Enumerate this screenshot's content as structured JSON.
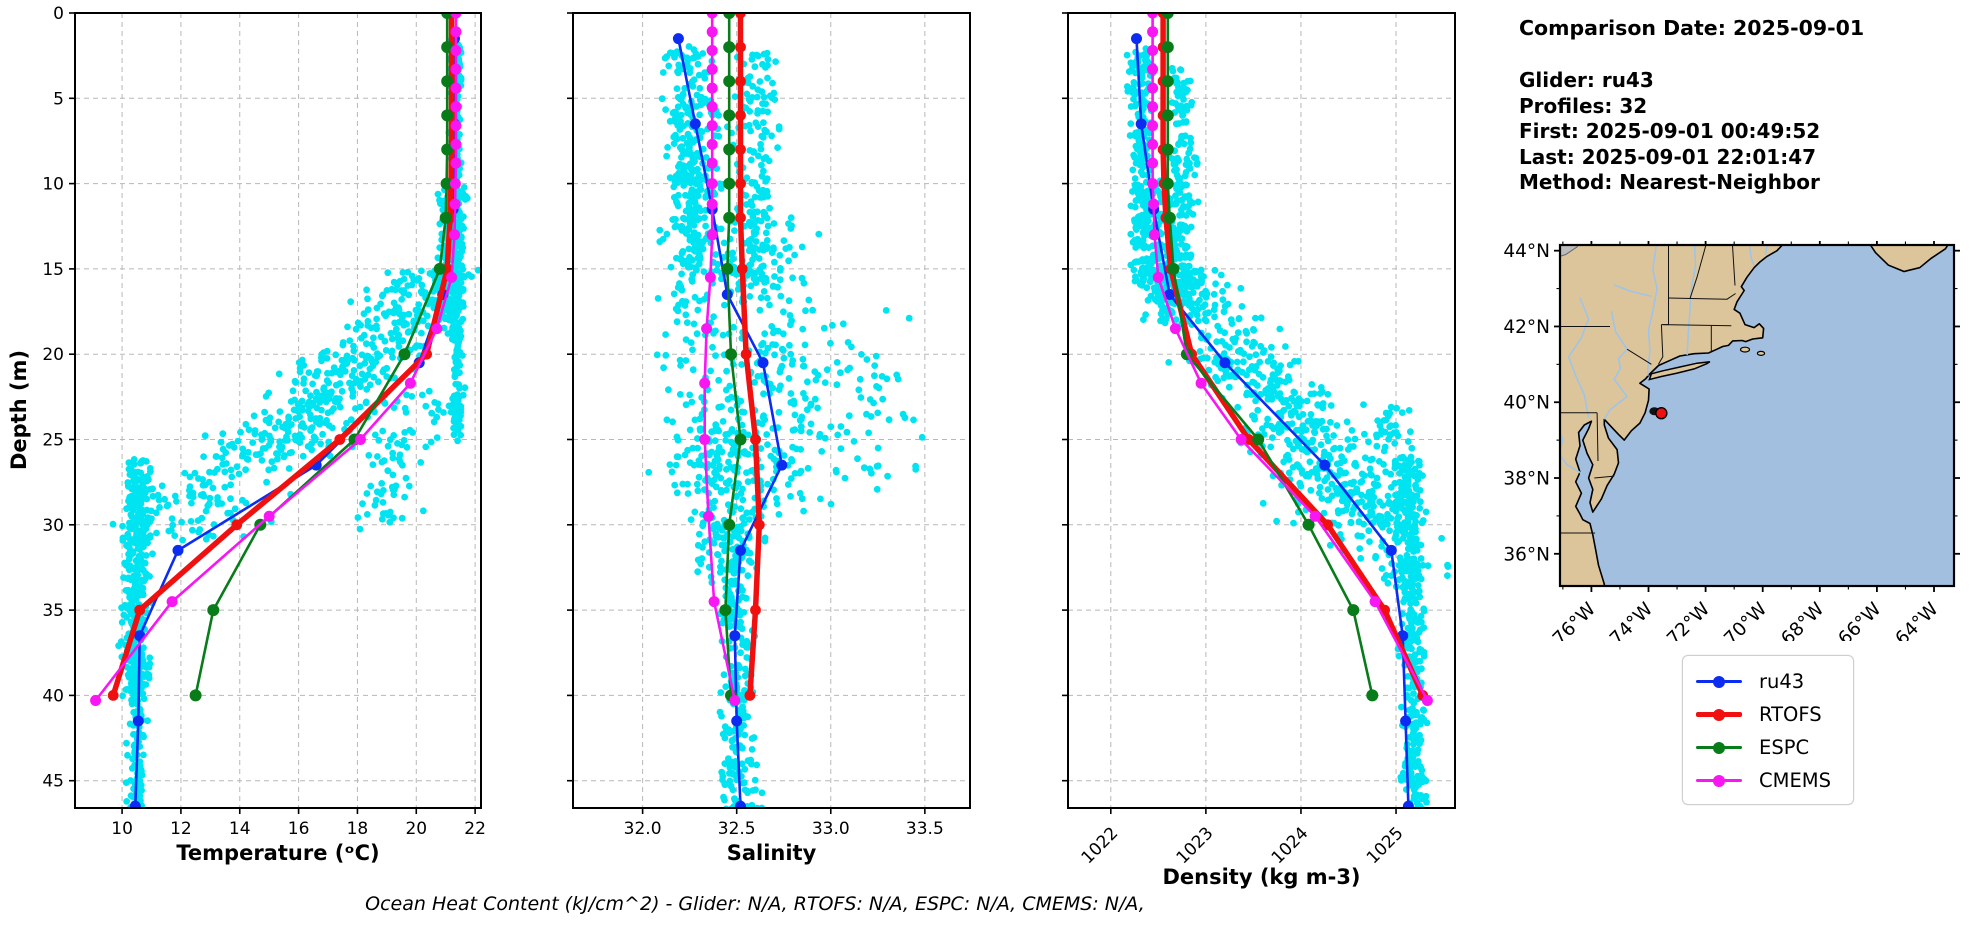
{
  "header": {
    "title": "Comparison Date: 2025-09-01",
    "lines": [
      "Glider: ru43",
      "Profiles: 32",
      "First: 2025-09-01 00:49:52",
      "Last: 2025-09-01 22:01:47",
      "Method: Nearest-Neighbor"
    ]
  },
  "footer": {
    "text": "Ocean Heat Content (kJ/cm^2) - Glider: N/A,  RTOFS: N/A,  ESPC: N/A,  CMEMS: N/A,"
  },
  "legend": {
    "entries": [
      {
        "label": "ru43",
        "color": "#0d2cf2",
        "thick": false
      },
      {
        "label": "RTOFS",
        "color": "#f01010",
        "thick": true
      },
      {
        "label": "ESPC",
        "color": "#077c19",
        "thick": false
      },
      {
        "label": "CMEMS",
        "color": "#f816f3",
        "thick": false
      }
    ]
  },
  "colors": {
    "scatter": "#00e4f1",
    "grid": "#b8b8b8",
    "axis": "#000000"
  },
  "chart_data": [
    {
      "type": "scatter",
      "xlabel": "Temperature (ᵒC)",
      "ylabel": "Depth (m)",
      "xlim": [
        8.4,
        22.2
      ],
      "xticks": [
        10,
        12,
        14,
        16,
        18,
        20,
        22
      ],
      "xtick_labels": [
        "10",
        "12",
        "14",
        "16",
        "18",
        "20",
        "22"
      ],
      "rotate_xticks": false,
      "depth_lim": [
        0,
        46.6
      ],
      "depth_ticks": [
        0,
        5,
        10,
        15,
        20,
        25,
        30,
        35,
        40,
        45
      ],
      "show_depth_labels": true,
      "scatter_clusters": [
        {
          "n": 260,
          "d": [
            1.5,
            13
          ],
          "x": [
            21.35,
            21.3
          ],
          "s": 0.18
        },
        {
          "n": 200,
          "d": [
            10,
            18
          ],
          "x": [
            21.3,
            21.0
          ],
          "s": 0.45
        },
        {
          "n": 160,
          "d": [
            12,
            25
          ],
          "x": [
            21.45,
            21.35
          ],
          "s": 0.18
        },
        {
          "n": 300,
          "d": [
            15,
            26
          ],
          "x": [
            20.8,
            15.5
          ],
          "s": 1.9
        },
        {
          "n": 220,
          "d": [
            20,
            31
          ],
          "x": [
            18.0,
            11.5
          ],
          "s": 2.2
        },
        {
          "n": 200,
          "d": [
            26,
            40
          ],
          "x": [
            10.6,
            10.45
          ],
          "s": 0.5
        },
        {
          "n": 320,
          "d": [
            27,
            47
          ],
          "x": [
            10.5,
            10.5
          ],
          "s": 0.28
        },
        {
          "n": 80,
          "d": [
            22,
            30
          ],
          "x": [
            20.5,
            18.5
          ],
          "s": 1.2
        }
      ],
      "series": [
        {
          "name": "ru43",
          "color": "#0d2cf2",
          "lw": 2.6,
          "ms": 5.5,
          "depths": [
            1.5,
            6.5,
            11.5,
            16.5,
            20.5,
            26.5,
            31.5,
            36.5,
            41.5,
            46.5
          ],
          "values": [
            21.3,
            21.3,
            21.25,
            20.9,
            20.1,
            16.6,
            11.9,
            10.6,
            10.55,
            10.45
          ]
        },
        {
          "name": "RTOFS",
          "color": "#f01010",
          "lw": 5.5,
          "ms": 5.4,
          "depths": [
            0,
            2,
            4,
            6,
            8,
            10,
            12,
            15,
            20,
            25,
            30,
            35,
            40
          ],
          "values": [
            21.2,
            21.2,
            21.2,
            21.2,
            21.2,
            21.18,
            21.15,
            21.05,
            20.35,
            17.4,
            13.9,
            10.6,
            9.7
          ]
        },
        {
          "name": "ESPC",
          "color": "#077c19",
          "lw": 2.6,
          "ms": 6.0,
          "depths": [
            0,
            2,
            4,
            6,
            8,
            10,
            12,
            15,
            20,
            25,
            30,
            35,
            40
          ],
          "values": [
            21.05,
            21.05,
            21.05,
            21.05,
            21.05,
            21.03,
            21.0,
            20.8,
            19.6,
            17.9,
            14.7,
            13.1,
            12.5
          ]
        },
        {
          "name": "CMEMS",
          "color": "#f816f3",
          "lw": 2.6,
          "ms": 5.5,
          "depths": [
            0,
            1.1,
            2.2,
            3.3,
            4.4,
            5.5,
            6.6,
            7.7,
            8.8,
            10,
            11.2,
            13,
            15.5,
            18.5,
            21.7,
            25,
            29.5,
            34.5,
            40.3
          ],
          "values": [
            21.35,
            21.35,
            21.35,
            21.35,
            21.35,
            21.35,
            21.35,
            21.35,
            21.35,
            21.33,
            21.32,
            21.3,
            21.2,
            20.7,
            19.8,
            18.1,
            15.0,
            11.7,
            9.1
          ]
        }
      ]
    },
    {
      "type": "scatter",
      "xlabel": "Salinity",
      "ylabel": "",
      "xlim": [
        31.63,
        33.74
      ],
      "xticks": [
        32.0,
        32.5,
        33.0,
        33.5
      ],
      "xtick_labels": [
        "32.0",
        "32.5",
        "33.0",
        "33.5"
      ],
      "rotate_xticks": false,
      "depth_lim": [
        0,
        46.6
      ],
      "depth_ticks": [
        0,
        5,
        10,
        15,
        20,
        25,
        30,
        35,
        40,
        45
      ],
      "show_depth_labels": false,
      "scatter_clusters": [
        {
          "n": 240,
          "d": [
            2,
            15
          ],
          "x": [
            32.22,
            32.28
          ],
          "s": 0.13
        },
        {
          "n": 200,
          "d": [
            5,
            28
          ],
          "x": [
            32.28,
            32.3
          ],
          "s": 0.2
        },
        {
          "n": 160,
          "d": [
            2,
            16
          ],
          "x": [
            32.62,
            32.6
          ],
          "s": 0.1
        },
        {
          "n": 240,
          "d": [
            12,
            30
          ],
          "x": [
            32.65,
            32.7
          ],
          "s": 0.3
        },
        {
          "n": 70,
          "d": [
            17,
            28
          ],
          "x": [
            33.1,
            33.15
          ],
          "s": 0.3
        },
        {
          "n": 260,
          "d": [
            30,
            47
          ],
          "x": [
            32.48,
            32.52
          ],
          "s": 0.09
        },
        {
          "n": 140,
          "d": [
            24,
            33
          ],
          "x": [
            32.42,
            32.46
          ],
          "s": 0.2
        }
      ],
      "series": [
        {
          "name": "ru43",
          "color": "#0d2cf2",
          "lw": 2.6,
          "ms": 5.5,
          "depths": [
            1.5,
            6.5,
            11.5,
            16.5,
            20.5,
            26.5,
            31.5,
            36.5,
            41.5,
            46.5
          ],
          "values": [
            32.19,
            32.28,
            32.37,
            32.45,
            32.64,
            32.74,
            32.52,
            32.49,
            32.5,
            32.52
          ]
        },
        {
          "name": "RTOFS",
          "color": "#f01010",
          "lw": 5.5,
          "ms": 5.4,
          "depths": [
            0,
            2,
            4,
            6,
            8,
            10,
            12,
            15,
            20,
            25,
            30,
            35,
            40
          ],
          "values": [
            32.52,
            32.52,
            32.52,
            32.52,
            32.52,
            32.52,
            32.52,
            32.53,
            32.55,
            32.6,
            32.62,
            32.6,
            32.57
          ]
        },
        {
          "name": "ESPC",
          "color": "#077c19",
          "lw": 2.6,
          "ms": 6.0,
          "depths": [
            0,
            2,
            4,
            6,
            8,
            10,
            12,
            15,
            20,
            25,
            30,
            35,
            40
          ],
          "values": [
            32.46,
            32.46,
            32.46,
            32.46,
            32.46,
            32.46,
            32.46,
            32.45,
            32.47,
            32.52,
            32.46,
            32.44,
            32.47
          ]
        },
        {
          "name": "CMEMS",
          "color": "#f816f3",
          "lw": 2.6,
          "ms": 5.5,
          "depths": [
            0,
            1.1,
            2.2,
            3.3,
            4.4,
            5.5,
            6.6,
            7.7,
            8.8,
            10,
            11.2,
            13,
            15.5,
            18.5,
            21.7,
            25,
            29.5,
            34.5,
            40.3
          ],
          "values": [
            32.37,
            32.37,
            32.37,
            32.37,
            32.37,
            32.37,
            32.37,
            32.37,
            32.37,
            32.37,
            32.37,
            32.37,
            32.36,
            32.34,
            32.33,
            32.33,
            32.35,
            32.38,
            32.49
          ]
        }
      ]
    },
    {
      "type": "scatter",
      "xlabel": "Density (kg m-3)",
      "ylabel": "",
      "xlim": [
        1021.55,
        1025.62
      ],
      "xticks": [
        1022,
        1023,
        1024,
        1025
      ],
      "xtick_labels": [
        "1022",
        "1023",
        "1024",
        "1025"
      ],
      "rotate_xticks": true,
      "depth_lim": [
        0,
        46.6
      ],
      "depth_ticks": [
        0,
        5,
        10,
        15,
        20,
        25,
        30,
        35,
        40,
        45
      ],
      "show_depth_labels": false,
      "scatter_clusters": [
        {
          "n": 230,
          "d": [
            2,
            16
          ],
          "x": [
            1022.3,
            1022.35
          ],
          "s": 0.13
        },
        {
          "n": 180,
          "d": [
            3,
            17
          ],
          "x": [
            1022.72,
            1022.78
          ],
          "s": 0.13
        },
        {
          "n": 200,
          "d": [
            10,
            18
          ],
          "x": [
            1022.45,
            1022.6
          ],
          "s": 0.25
        },
        {
          "n": 380,
          "d": [
            15,
            30
          ],
          "x": [
            1022.7,
            1024.8
          ],
          "s": 0.5
        },
        {
          "n": 150,
          "d": [
            20,
            33
          ],
          "x": [
            1023.3,
            1025.0
          ],
          "s": 0.7
        },
        {
          "n": 360,
          "d": [
            26,
            47
          ],
          "x": [
            1025.15,
            1025.2
          ],
          "s": 0.12
        },
        {
          "n": 120,
          "d": [
            23,
            34
          ],
          "x": [
            1024.9,
            1025.1
          ],
          "s": 0.25
        }
      ],
      "series": [
        {
          "name": "ru43",
          "color": "#0d2cf2",
          "lw": 2.6,
          "ms": 5.5,
          "depths": [
            1.5,
            6.5,
            11.5,
            16.5,
            20.5,
            26.5,
            31.5,
            36.5,
            41.5,
            46.5
          ],
          "values": [
            1022.27,
            1022.32,
            1022.45,
            1022.62,
            1023.2,
            1024.25,
            1024.95,
            1025.07,
            1025.1,
            1025.13
          ]
        },
        {
          "name": "RTOFS",
          "color": "#f01010",
          "lw": 5.5,
          "ms": 5.4,
          "depths": [
            0,
            2,
            4,
            6,
            8,
            10,
            12,
            15,
            20,
            25,
            30,
            35,
            40
          ],
          "values": [
            1022.55,
            1022.55,
            1022.55,
            1022.55,
            1022.55,
            1022.56,
            1022.58,
            1022.63,
            1022.85,
            1023.45,
            1024.28,
            1024.88,
            1025.28
          ]
        },
        {
          "name": "ESPC",
          "color": "#077c19",
          "lw": 2.6,
          "ms": 6.0,
          "depths": [
            0,
            2,
            4,
            6,
            8,
            10,
            12,
            15,
            20,
            25,
            30,
            35,
            40
          ],
          "values": [
            1022.6,
            1022.6,
            1022.6,
            1022.6,
            1022.6,
            1022.6,
            1022.62,
            1022.66,
            1022.8,
            1023.55,
            1024.08,
            1024.55,
            1024.75
          ]
        },
        {
          "name": "CMEMS",
          "color": "#f816f3",
          "lw": 2.6,
          "ms": 5.5,
          "depths": [
            0,
            1.1,
            2.2,
            3.3,
            4.4,
            5.5,
            6.6,
            7.7,
            8.8,
            10,
            11.2,
            13,
            15.5,
            18.5,
            21.7,
            25,
            29.5,
            34.5,
            40.3
          ],
          "values": [
            1022.44,
            1022.44,
            1022.44,
            1022.44,
            1022.44,
            1022.44,
            1022.44,
            1022.44,
            1022.44,
            1022.44,
            1022.45,
            1022.46,
            1022.5,
            1022.68,
            1022.95,
            1023.37,
            1024.15,
            1024.78,
            1025.33
          ]
        }
      ]
    }
  ],
  "map": {
    "lat_ticks": [
      {
        "value": 44,
        "label": "44°N"
      },
      {
        "value": 42,
        "label": "42°N"
      },
      {
        "value": 40,
        "label": "40°N"
      },
      {
        "value": 38,
        "label": "38°N"
      },
      {
        "value": 36,
        "label": "36°N"
      }
    ],
    "lon_ticks": [
      {
        "value": -76,
        "label": "76°W"
      },
      {
        "value": -74,
        "label": "74°W"
      },
      {
        "value": -72,
        "label": "72°W"
      },
      {
        "value": -70,
        "label": "70°W"
      },
      {
        "value": -68,
        "label": "68°W"
      },
      {
        "value": -66,
        "label": "66°W"
      },
      {
        "value": -64,
        "label": "64°W"
      }
    ],
    "extent": {
      "lon": [
        -77.1,
        -63.3
      ],
      "lat": [
        35.15,
        44.15
      ]
    },
    "glider_marker": {
      "lon": -73.55,
      "lat": 39.71,
      "color": "#ee1111"
    },
    "land_color": "#dcc59a",
    "ocean_color": "#a3bfe0",
    "lake_color": "#bcbcbc",
    "river_color": "#9cc4ec",
    "coast_color": "#000000"
  }
}
